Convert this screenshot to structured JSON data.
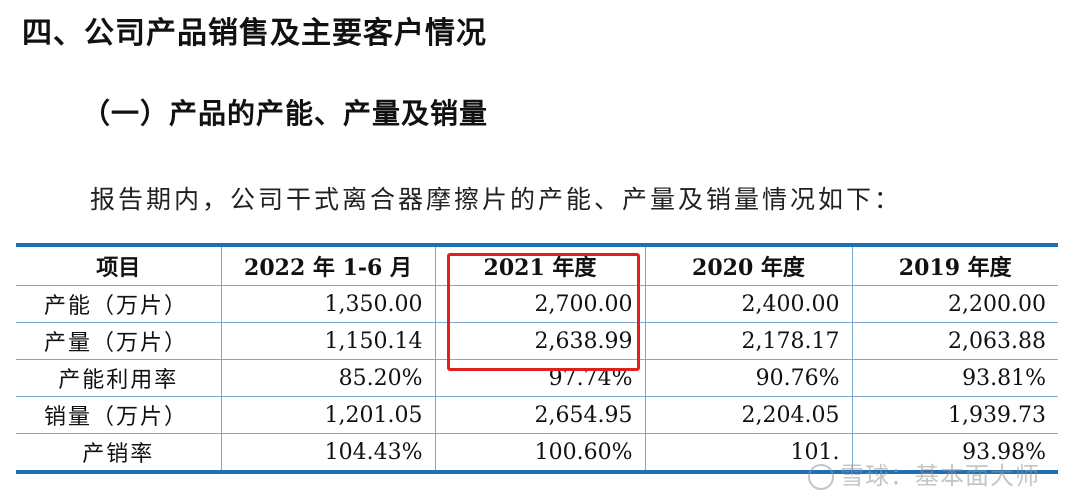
{
  "heading_section": "四、公司产品销售及主要客户情况",
  "heading_sub": "（一）产品的产能、产量及销量",
  "intro_paragraph": "报告期内，公司干式离合器摩擦片的产能、产量及销量情况如下：",
  "table": {
    "headers": [
      "项目",
      "2022 年 1-6 月",
      "2021 年度",
      "2020 年度",
      "2019 年度"
    ],
    "rows": [
      [
        "产能（万片）",
        "1,350.00",
        "2,700.00",
        "2,400.00",
        "2,200.00"
      ],
      [
        "产量（万片）",
        "1,150.14",
        "2,638.99",
        "2,178.17",
        "2,063.88"
      ],
      [
        "产能利用率",
        "85.20%",
        "97.74%",
        "90.76%",
        "93.81%"
      ],
      [
        "销量（万片）",
        "1,201.05",
        "2,654.95",
        "2,204.05",
        "1,939.73"
      ],
      [
        "产销率",
        "104.43%",
        "100.60%",
        "101.",
        "93.98%"
      ]
    ]
  },
  "watermark": "雪球：基本面大师",
  "colors": {
    "table_rule": "#1f6fb5",
    "cell_border": "#7fa8cf",
    "highlight_box": "#e02020"
  }
}
